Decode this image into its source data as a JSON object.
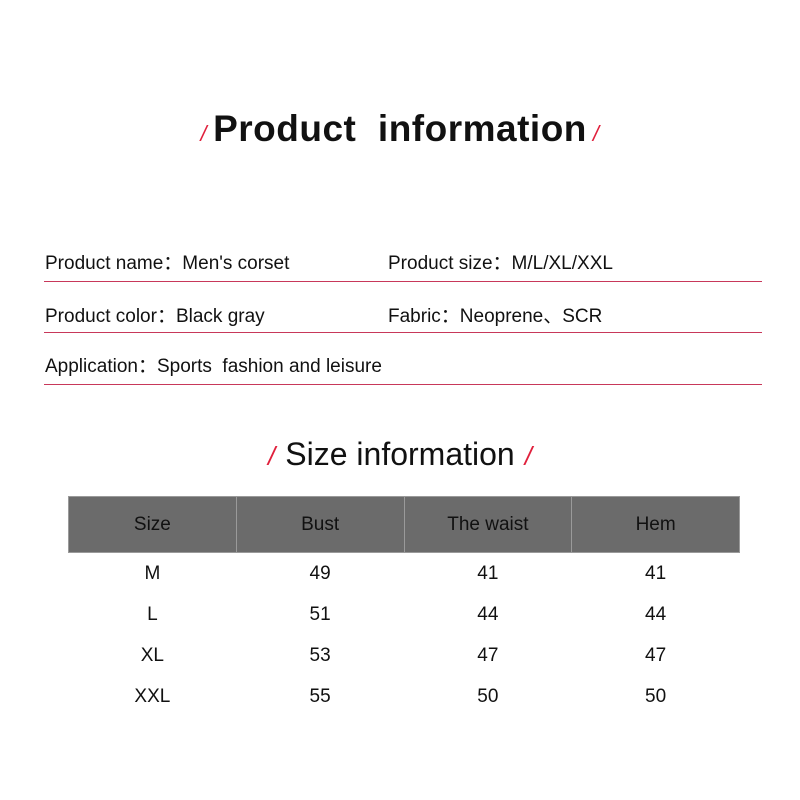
{
  "title": {
    "text": "Product  information",
    "slash": "/"
  },
  "product_info": {
    "name_label": "Product name：",
    "name_value": "Men's corset",
    "size_label": "Product size：",
    "size_value": "M/L/XL/XXL",
    "color_label": "Product color：",
    "color_value": "Black gray",
    "fabric_label": "Fabric：",
    "fabric_value": "Neoprene、SCR",
    "application_label": "Application：",
    "application_value": "Sports  fashion and leisure"
  },
  "size_title": {
    "text": "Size information",
    "slash": "/"
  },
  "size_table": {
    "headers": [
      "Size",
      "Bust",
      "The waist",
      "Hem"
    ],
    "rows": [
      [
        "M",
        "49",
        "41",
        "41"
      ],
      [
        "L",
        "51",
        "44",
        "44"
      ],
      [
        "XL",
        "53",
        "47",
        "47"
      ],
      [
        "XXL",
        "55",
        "50",
        "50"
      ]
    ]
  },
  "colors": {
    "accent": "#e0203c",
    "divider": "#c8385a",
    "header_bg": "#6b6b6b"
  }
}
